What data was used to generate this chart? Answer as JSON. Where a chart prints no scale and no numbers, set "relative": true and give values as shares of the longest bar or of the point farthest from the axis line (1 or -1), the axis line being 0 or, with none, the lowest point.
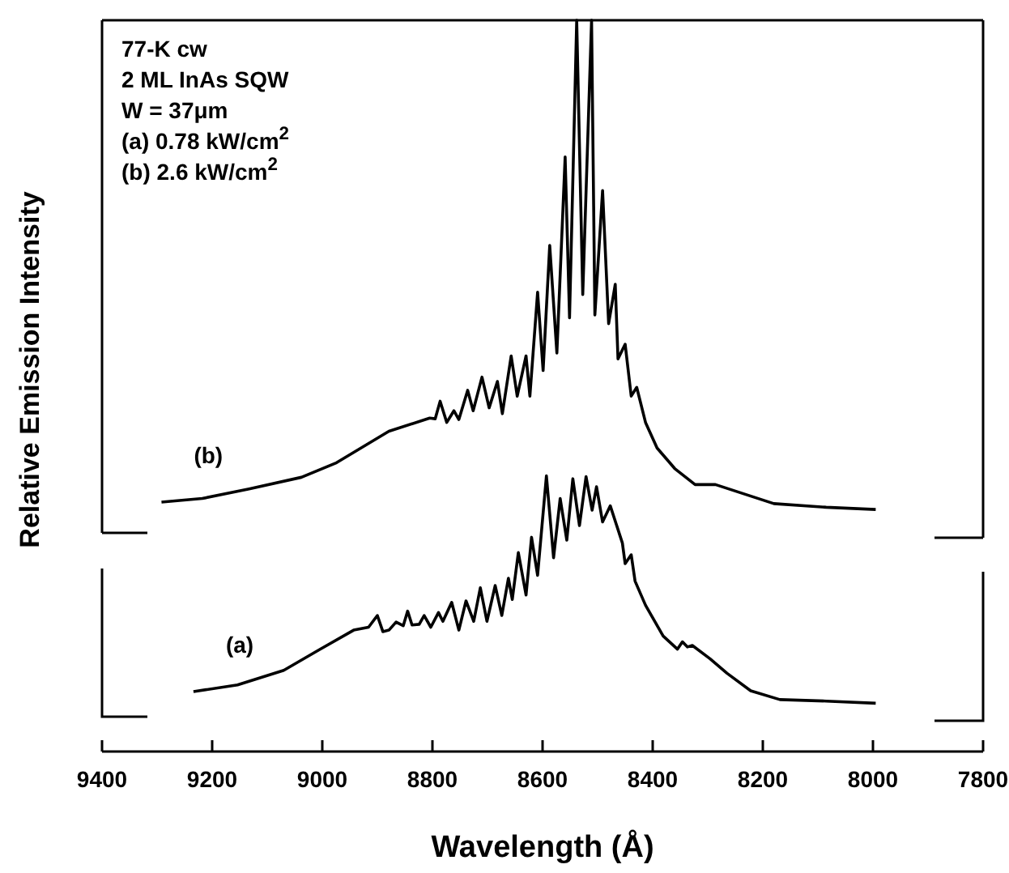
{
  "chart_data": {
    "type": "line",
    "relative": true,
    "xlabel": "Wavelength (Å)",
    "ylabel": "Relative Emission Intensity",
    "xlim": [
      9400,
      7800
    ],
    "xticks": [
      9400,
      9200,
      9000,
      8800,
      8600,
      8400,
      8200,
      8000,
      7800
    ],
    "legend": false,
    "grid": false,
    "marker": "none",
    "line_style": "solid",
    "annotations": [
      "77-K  cw",
      "2 ML InAs SQW",
      "W = 37μm",
      "(a) 0.78 kW/cm$^{2}$",
      "(b) 2.6 kW/cm$^{2}$"
    ],
    "series": [
      {
        "name": "(b)",
        "color": "#000000",
        "x": [
          9292,
          9218,
          9133,
          9038,
          8974,
          8879,
          8805,
          8795,
          8786,
          8774,
          8761,
          8752,
          8736,
          8726,
          8710,
          8697,
          8682,
          8673,
          8657,
          8646,
          8630,
          8623,
          8609,
          8599,
          8587,
          8574,
          8559,
          8551,
          8538,
          8527,
          8511,
          8505,
          8491,
          8480,
          8468,
          8463,
          8450,
          8439,
          8429,
          8413,
          8392,
          8360,
          8323,
          8286,
          8180,
          8085,
          7995
        ],
        "values": [
          0.341,
          0.346,
          0.359,
          0.375,
          0.395,
          0.438,
          0.456,
          0.455,
          0.479,
          0.45,
          0.466,
          0.454,
          0.494,
          0.466,
          0.512,
          0.47,
          0.506,
          0.462,
          0.541,
          0.486,
          0.541,
          0.486,
          0.628,
          0.521,
          0.692,
          0.545,
          0.813,
          0.593,
          1.0,
          0.625,
          1.0,
          0.597,
          0.767,
          0.585,
          0.639,
          0.537,
          0.557,
          0.486,
          0.498,
          0.45,
          0.415,
          0.387,
          0.365,
          0.365,
          0.339,
          0.334,
          0.331
        ]
      },
      {
        "name": "(a)",
        "color": "#000000",
        "x": [
          9234,
          9154,
          9070,
          9006,
          8943,
          8916,
          8900,
          8890,
          8879,
          8866,
          8853,
          8845,
          8837,
          8824,
          8815,
          8803,
          8789,
          8781,
          8765,
          8752,
          8739,
          8725,
          8713,
          8701,
          8686,
          8674,
          8662,
          8655,
          8644,
          8630,
          8620,
          8609,
          8593,
          8580,
          8568,
          8556,
          8545,
          8533,
          8521,
          8510,
          8502,
          8491,
          8477,
          8455,
          8450,
          8439,
          8432,
          8413,
          8381,
          8355,
          8346,
          8337,
          8328,
          8296,
          8265,
          8222,
          8169,
          8085,
          7995
        ],
        "values": [
          0.082,
          0.091,
          0.111,
          0.139,
          0.166,
          0.17,
          0.186,
          0.164,
          0.166,
          0.177,
          0.172,
          0.192,
          0.173,
          0.174,
          0.186,
          0.17,
          0.19,
          0.178,
          0.204,
          0.166,
          0.206,
          0.178,
          0.224,
          0.178,
          0.227,
          0.186,
          0.237,
          0.208,
          0.272,
          0.214,
          0.293,
          0.241,
          0.377,
          0.265,
          0.346,
          0.289,
          0.373,
          0.309,
          0.376,
          0.33,
          0.362,
          0.314,
          0.336,
          0.285,
          0.257,
          0.269,
          0.233,
          0.2,
          0.158,
          0.14,
          0.15,
          0.143,
          0.145,
          0.127,
          0.107,
          0.083,
          0.071,
          0.069,
          0.066
        ]
      }
    ]
  }
}
